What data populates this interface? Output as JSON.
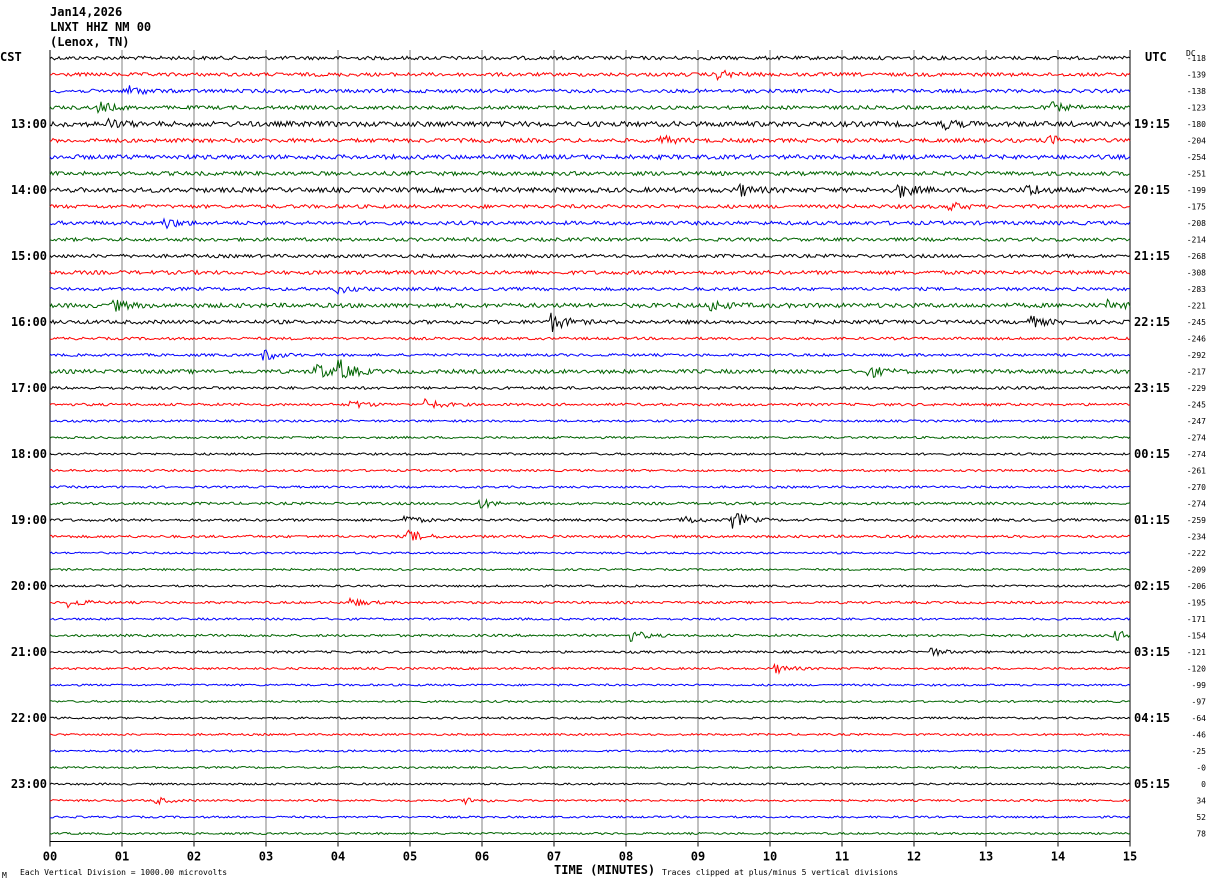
{
  "header": {
    "date": "Jan14,2026",
    "station": "LNXT HHZ NM 00",
    "location": "(Lenox, TN)"
  },
  "left_tz": "CST",
  "right_tz": "UTC",
  "dc_label": "DC",
  "footer": {
    "left_note": "Each Vertical Division = 1000.00 microvolts",
    "center_note": "TIME (MINUTES)",
    "right_note": "Traces clipped at plus/minus 5 vertical divisions",
    "corner_mark": "M"
  },
  "colors": {
    "black": "#000000",
    "red": "#ff0000",
    "blue": "#0000ff",
    "green": "#006400",
    "grid": "#808080"
  },
  "chart_data": {
    "type": "helicorder",
    "x_axis_label": "TIME (MINUTES)",
    "xlim": [
      0,
      15
    ],
    "x_ticks": [
      "00",
      "01",
      "02",
      "03",
      "04",
      "05",
      "06",
      "07",
      "08",
      "09",
      "10",
      "11",
      "12",
      "13",
      "14",
      "15"
    ],
    "minutes_per_line": 15,
    "trace_colors_cycle": [
      "black",
      "red",
      "blue",
      "green"
    ],
    "left_hour_labels": [
      {
        "line": 4,
        "label": "13:00"
      },
      {
        "line": 8,
        "label": "14:00"
      },
      {
        "line": 12,
        "label": "15:00"
      },
      {
        "line": 16,
        "label": "16:00"
      },
      {
        "line": 20,
        "label": "17:00"
      },
      {
        "line": 24,
        "label": "18:00"
      },
      {
        "line": 28,
        "label": "19:00"
      },
      {
        "line": 32,
        "label": "20:00"
      },
      {
        "line": 36,
        "label": "21:00"
      },
      {
        "line": 40,
        "label": "22:00"
      },
      {
        "line": 44,
        "label": "23:00"
      }
    ],
    "right_hour_labels": [
      {
        "line": 4,
        "label": "19:15"
      },
      {
        "line": 8,
        "label": "20:15"
      },
      {
        "line": 12,
        "label": "21:15"
      },
      {
        "line": 16,
        "label": "22:15"
      },
      {
        "line": 20,
        "label": "23:15"
      },
      {
        "line": 24,
        "label": "00:15"
      },
      {
        "line": 28,
        "label": "01:15"
      },
      {
        "line": 32,
        "label": "02:15"
      },
      {
        "line": 36,
        "label": "03:15"
      },
      {
        "line": 40,
        "label": "04:15"
      },
      {
        "line": 44,
        "label": "05:15"
      }
    ],
    "dc_offsets": [
      "-118",
      "-139",
      "-138",
      "-123",
      "-180",
      "-204",
      "-254",
      "-251",
      "-199",
      "-175",
      "-208",
      "-214",
      "-268",
      "-308",
      "-283",
      "-221",
      "-245",
      "-246",
      "-292",
      "-217",
      "-229",
      "-245",
      "-247",
      "-274",
      "-274",
      "-261",
      "-270",
      "-274",
      "-259",
      "-234",
      "-222",
      "-209",
      "-206",
      "-195",
      "-171",
      "-154",
      "-121",
      "-120",
      "-99",
      "-97",
      "-64",
      "-46",
      "-25",
      "-0",
      "0",
      "34",
      "52",
      "78"
    ],
    "lines": [
      {
        "amp": 1.8,
        "events": []
      },
      {
        "amp": 1.8,
        "events": [
          {
            "t": 9.3,
            "a": 4
          }
        ]
      },
      {
        "amp": 1.8,
        "events": [
          {
            "t": 1.1,
            "a": 5
          }
        ]
      },
      {
        "amp": 1.8,
        "events": [
          {
            "t": 0.7,
            "a": 5
          },
          {
            "t": 13.9,
            "a": 5
          }
        ]
      },
      {
        "amp": 2.6,
        "events": [
          {
            "t": 0.8,
            "a": 4
          },
          {
            "t": 12.4,
            "a": 4
          }
        ]
      },
      {
        "amp": 2,
        "events": [
          {
            "t": 8.5,
            "a": 4
          },
          {
            "t": 13.9,
            "a": 4
          }
        ]
      },
      {
        "amp": 2.2,
        "events": []
      },
      {
        "amp": 2,
        "events": []
      },
      {
        "amp": 2.4,
        "events": [
          {
            "t": 9.6,
            "a": 5
          },
          {
            "t": 11.8,
            "a": 7
          },
          {
            "t": 13.6,
            "a": 6
          }
        ]
      },
      {
        "amp": 1.8,
        "events": [
          {
            "t": 12.5,
            "a": 4
          }
        ]
      },
      {
        "amp": 1.9,
        "events": [
          {
            "t": 1.6,
            "a": 5
          }
        ]
      },
      {
        "amp": 1.7,
        "events": []
      },
      {
        "amp": 1.7,
        "events": []
      },
      {
        "amp": 1.9,
        "events": []
      },
      {
        "amp": 1.6,
        "events": [
          {
            "t": 4.0,
            "a": 4
          }
        ]
      },
      {
        "amp": 2.2,
        "events": [
          {
            "t": 0.9,
            "a": 5
          },
          {
            "t": 9.2,
            "a": 5
          },
          {
            "t": 14.7,
            "a": 4
          }
        ]
      },
      {
        "amp": 1.9,
        "events": [
          {
            "t": 6.95,
            "a": 10
          },
          {
            "t": 13.6,
            "a": 6
          }
        ]
      },
      {
        "amp": 1.3,
        "events": []
      },
      {
        "amp": 1.3,
        "events": [
          {
            "t": 3.0,
            "a": 5
          }
        ]
      },
      {
        "amp": 2,
        "events": [
          {
            "t": 3.7,
            "a": 8
          },
          {
            "t": 4.05,
            "a": 9
          },
          {
            "t": 11.4,
            "a": 5
          }
        ]
      },
      {
        "amp": 1.4,
        "events": []
      },
      {
        "amp": 1.3,
        "events": [
          {
            "t": 4.2,
            "a": 4
          },
          {
            "t": 5.25,
            "a": 5
          }
        ]
      },
      {
        "amp": 1.1,
        "events": []
      },
      {
        "amp": 1.1,
        "events": []
      },
      {
        "amp": 1.1,
        "events": []
      },
      {
        "amp": 1.1,
        "events": []
      },
      {
        "amp": 1.1,
        "events": []
      },
      {
        "amp": 1.3,
        "events": [
          {
            "t": 6.0,
            "a": 4
          }
        ]
      },
      {
        "amp": 1.3,
        "events": [
          {
            "t": 4.95,
            "a": 4
          },
          {
            "t": 8.8,
            "a": 4
          },
          {
            "t": 9.5,
            "a": 8
          }
        ]
      },
      {
        "amp": 1.3,
        "events": [
          {
            "t": 5.0,
            "a": 6
          }
        ]
      },
      {
        "amp": 1.0,
        "events": []
      },
      {
        "amp": 1.0,
        "events": []
      },
      {
        "amp": 1.0,
        "events": []
      },
      {
        "amp": 1.2,
        "events": [
          {
            "t": 0.3,
            "a": 4
          },
          {
            "t": 4.2,
            "a": 4
          }
        ]
      },
      {
        "amp": 1.1,
        "events": []
      },
      {
        "amp": 1.2,
        "events": [
          {
            "t": 8.1,
            "a": 5
          },
          {
            "t": 14.8,
            "a": 5
          }
        ]
      },
      {
        "amp": 1.2,
        "events": [
          {
            "t": 12.2,
            "a": 5
          }
        ]
      },
      {
        "amp": 1.1,
        "events": [
          {
            "t": 10.1,
            "a": 4
          }
        ]
      },
      {
        "amp": 1.0,
        "events": []
      },
      {
        "amp": 1.0,
        "events": []
      },
      {
        "amp": 1.0,
        "events": []
      },
      {
        "amp": 1.0,
        "events": []
      },
      {
        "amp": 1.0,
        "events": []
      },
      {
        "amp": 1.0,
        "events": []
      },
      {
        "amp": 1.0,
        "events": []
      },
      {
        "amp": 1.0,
        "events": [
          {
            "t": 1.5,
            "a": 3
          },
          {
            "t": 5.8,
            "a": 3
          }
        ]
      },
      {
        "amp": 1.0,
        "events": []
      },
      {
        "amp": 1.0,
        "events": []
      }
    ]
  }
}
